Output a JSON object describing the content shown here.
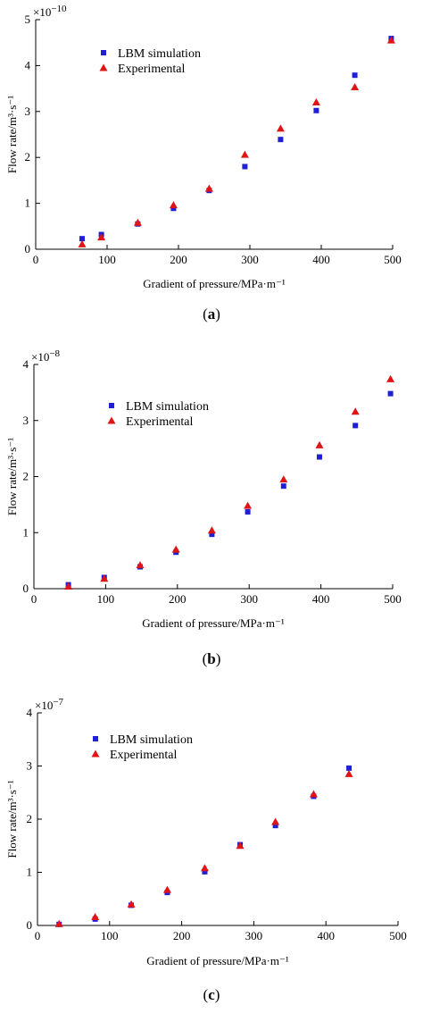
{
  "colors": {
    "simulation": "#1f1fd6",
    "experimental": "#e01414",
    "axis": "#000000"
  },
  "legend": {
    "simulation": "LBM simulation",
    "experimental": "Experimental"
  },
  "captions": [
    {
      "open": "(",
      "letter": "a",
      "close": ")"
    },
    {
      "open": "(",
      "letter": "b",
      "close": ")"
    },
    {
      "open": "(",
      "letter": "c",
      "close": ")"
    }
  ],
  "chart_data": [
    {
      "type": "scatter",
      "xlabel": "Gradient of pressure/MPa·m⁻¹",
      "ylabel": "Flow rate/m³·s⁻¹",
      "multiplier_base": "×10",
      "multiplier_exp": "−10",
      "xlim": [
        0,
        500
      ],
      "ylim": [
        0,
        5
      ],
      "xticks": [
        0,
        100,
        200,
        300,
        400,
        500
      ],
      "yticks": [
        0,
        1,
        2,
        3,
        4,
        5
      ],
      "legend_position": "top-left",
      "series": [
        {
          "name": "LBM simulation",
          "marker": "square",
          "x": [
            65,
            92,
            143,
            193,
            243,
            293,
            343,
            393,
            447,
            498
          ],
          "y": [
            0.23,
            0.32,
            0.55,
            0.89,
            1.28,
            1.8,
            2.39,
            3.02,
            3.79,
            4.59
          ]
        },
        {
          "name": "Experimental",
          "marker": "triangle",
          "x": [
            65,
            92,
            143,
            193,
            243,
            293,
            343,
            393,
            447,
            498
          ],
          "y": [
            0.11,
            0.26,
            0.58,
            0.96,
            1.32,
            2.06,
            2.63,
            3.2,
            3.53,
            4.55
          ]
        }
      ]
    },
    {
      "type": "scatter",
      "xlabel": "Gradient of pressure/MPa·m⁻¹",
      "ylabel": "Flow rate/m³·s⁻¹",
      "multiplier_base": "×10",
      "multiplier_exp": "−8",
      "xlim": [
        0,
        500
      ],
      "ylim": [
        0,
        4
      ],
      "xticks": [
        0,
        100,
        200,
        300,
        400,
        500
      ],
      "yticks": [
        0,
        1,
        2,
        3,
        4
      ],
      "legend_position": "top-left",
      "series": [
        {
          "name": "LBM simulation",
          "marker": "square",
          "x": [
            48,
            98,
            148,
            198,
            248,
            298,
            348,
            398,
            448,
            497
          ],
          "y": [
            0.07,
            0.2,
            0.39,
            0.65,
            0.97,
            1.37,
            1.83,
            2.35,
            2.91,
            3.48
          ]
        },
        {
          "name": "Experimental",
          "marker": "triangle",
          "x": [
            48,
            98,
            148,
            198,
            248,
            298,
            348,
            398,
            448,
            497
          ],
          "y": [
            0.04,
            0.18,
            0.42,
            0.7,
            1.04,
            1.48,
            1.95,
            2.56,
            3.16,
            3.74
          ]
        }
      ]
    },
    {
      "type": "scatter",
      "xlabel": "Gradient of pressure/MPa·m⁻¹",
      "ylabel": "Flow rate/m³·s⁻¹",
      "multiplier_base": "×10",
      "multiplier_exp": "−7",
      "xlim": [
        0,
        500
      ],
      "ylim": [
        0,
        4
      ],
      "xticks": [
        0,
        100,
        200,
        300,
        400,
        500
      ],
      "yticks": [
        0,
        1,
        2,
        3,
        4
      ],
      "legend_position": "top-left",
      "series": [
        {
          "name": "LBM simulation",
          "marker": "square",
          "x": [
            30,
            80,
            130,
            180,
            232,
            281,
            330,
            383,
            432
          ],
          "y": [
            0.02,
            0.12,
            0.38,
            0.62,
            1.01,
            1.52,
            1.88,
            2.43,
            2.96
          ]
        },
        {
          "name": "Experimental",
          "marker": "triangle",
          "x": [
            30,
            80,
            130,
            180,
            232,
            281,
            330,
            383,
            432
          ],
          "y": [
            0.03,
            0.16,
            0.4,
            0.67,
            1.08,
            1.5,
            1.95,
            2.47,
            2.85
          ]
        }
      ]
    }
  ]
}
